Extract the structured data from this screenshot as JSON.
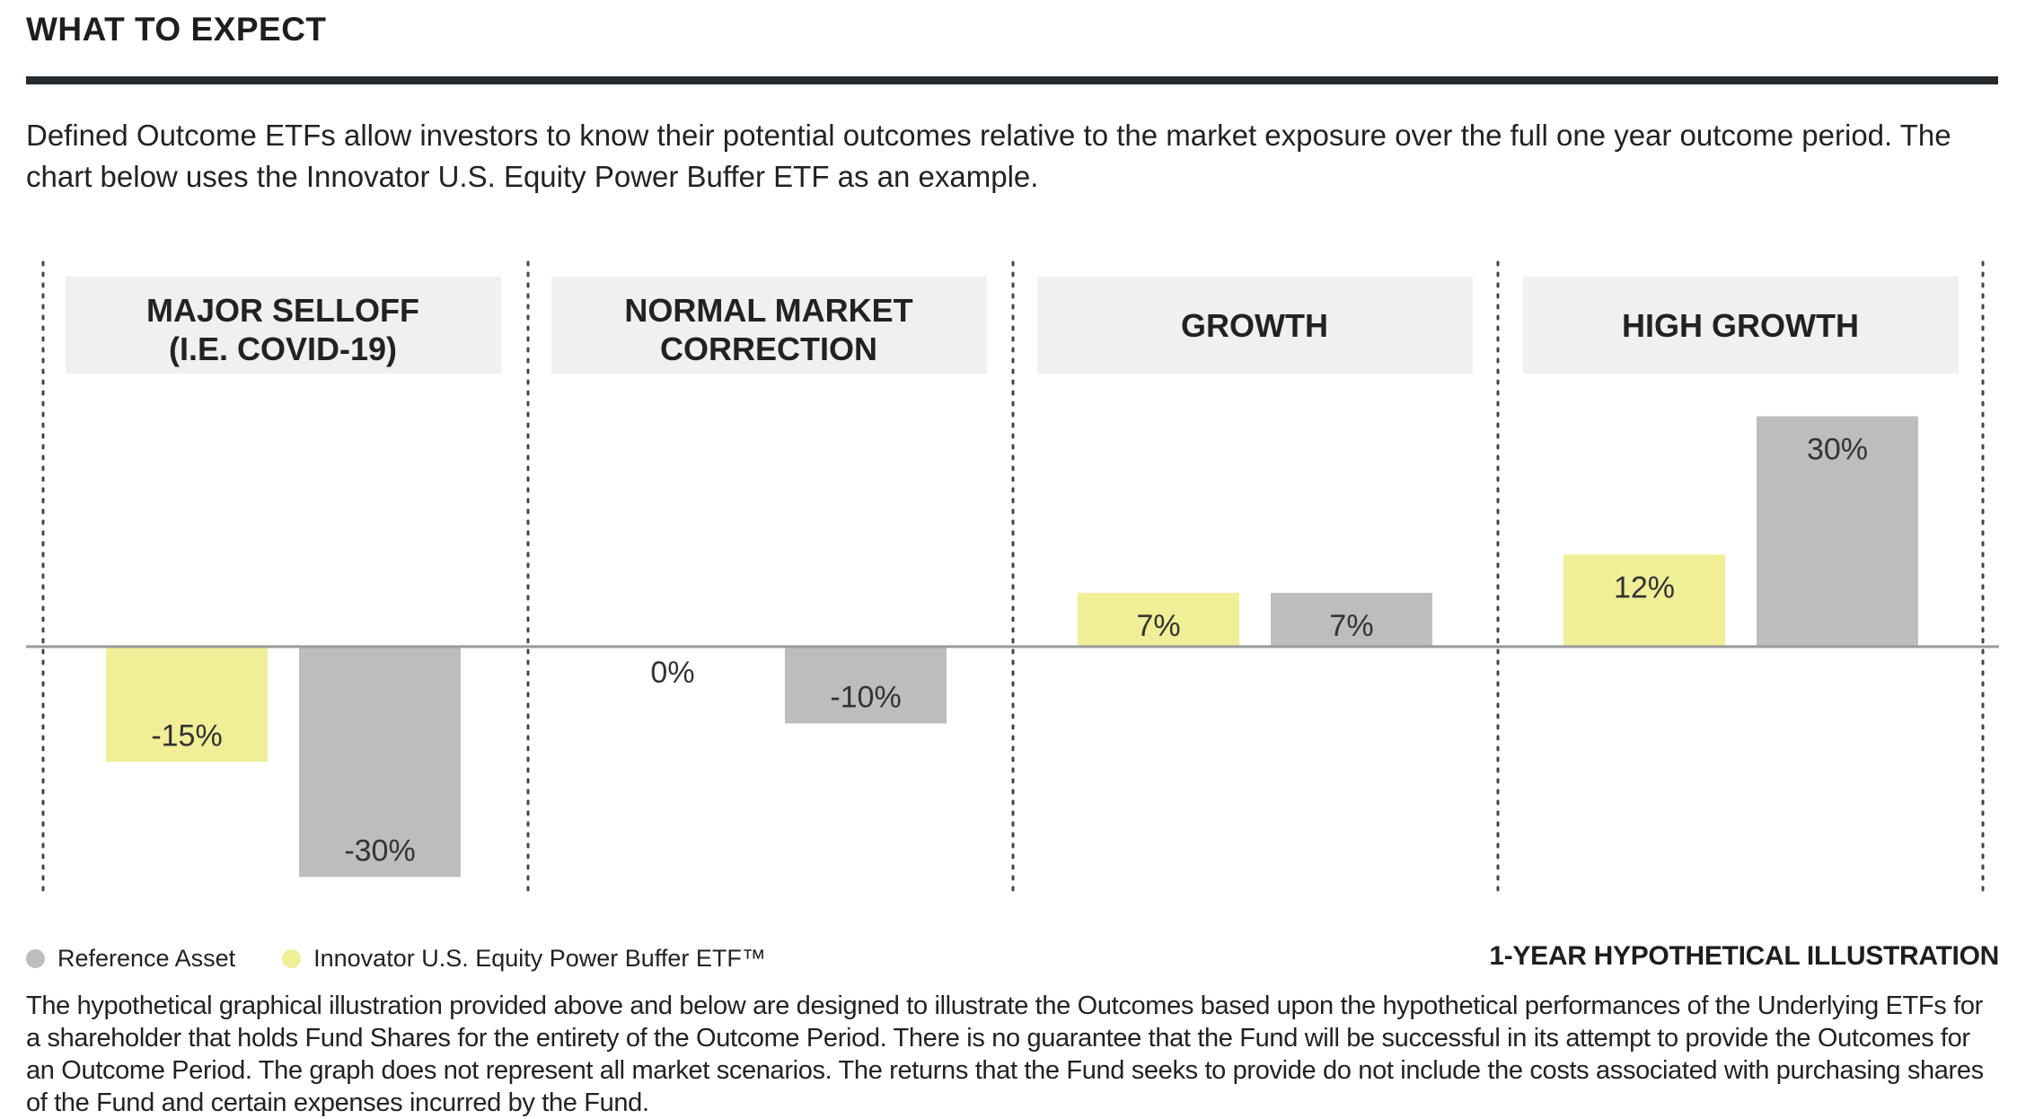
{
  "header": {
    "title": "WHAT TO EXPECT"
  },
  "intro": "Defined Outcome ETFs allow investors to know their potential outcomes relative to the market exposure over the full one year outcome period. The chart below uses the Innovator U.S. Equity Power Buffer ETF as an example.",
  "colors": {
    "etf": "#f0ee97",
    "reference": "#bdbdc0",
    "panel_header": "#eff0f1",
    "axis": "#9a9a9a",
    "divider": "#444444"
  },
  "chart_data": {
    "type": "bar",
    "categories": [
      "MAJOR SELLOFF\n(I.E. COVID-19)",
      "NORMAL MARKET\nCORRECTION",
      "GROWTH",
      "HIGH GROWTH"
    ],
    "series": [
      {
        "name": "Innovator U.S. Equity Power Buffer ETF™",
        "values": [
          -15,
          0,
          7,
          12
        ],
        "labels": [
          "-15%",
          "0%",
          "7%",
          "12%"
        ]
      },
      {
        "name": "Reference Asset",
        "values": [
          -30,
          -10,
          7,
          30
        ],
        "labels": [
          "-30%",
          "-10%",
          "7%",
          "30%"
        ]
      }
    ],
    "ylim": [
      -30,
      30
    ],
    "legend_position": "bottom-left",
    "subtitle": "1-YEAR HYPOTHETICAL ILLUSTRATION"
  },
  "legend": {
    "reference_label": "Reference Asset",
    "etf_label": "Innovator U.S. Equity Power Buffer ETF™"
  },
  "illustration_label": "1-YEAR HYPOTHETICAL ILLUSTRATION",
  "disclaimer": "The hypothetical graphical illustration provided above and below are designed to illustrate the Outcomes based upon the hypothetical performances of the Underlying ETFs for a shareholder that holds Fund Shares for the entirety of the Outcome Period.  There is no guarantee that the Fund will be successful in its attempt to provide the Outcomes for an Outcome Period.  The graph does not represent all market scenarios. The returns that the Fund seeks to provide do not include the costs associated with purchasing shares of the Fund and certain expenses incurred by the Fund."
}
